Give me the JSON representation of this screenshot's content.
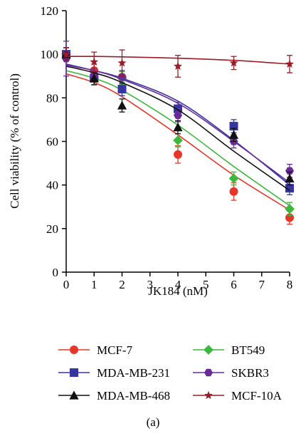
{
  "chart_data": {
    "type": "scatter",
    "xlabel": "JK184 (nM)",
    "ylabel": "Cell viability (% of control)",
    "caption": "(a)",
    "xlim": [
      0,
      8
    ],
    "ylim": [
      0,
      120
    ],
    "xticks": [
      0,
      1,
      2,
      3,
      4,
      5,
      6,
      7,
      8
    ],
    "yticks": [
      0,
      20,
      40,
      60,
      80,
      100,
      120
    ],
    "grid": false,
    "legend_position": "bottom",
    "x": [
      0,
      1,
      2,
      4,
      6,
      8
    ],
    "series": [
      {
        "name": "MCF-7",
        "color": "#e8352a",
        "marker": "circle",
        "values": [
          100,
          92.5,
          89.5,
          54,
          37,
          25
        ],
        "errors": [
          3,
          3,
          3,
          4,
          4,
          3
        ],
        "fit": [
          91,
          87,
          80.5,
          63,
          44.5,
          28.5
        ]
      },
      {
        "name": "BT549",
        "color": "#3cb83c",
        "marker": "diamond",
        "values": [
          100,
          89,
          89,
          60.5,
          43,
          29
        ],
        "errors": [
          3,
          3,
          3,
          3,
          3,
          3
        ],
        "fit": [
          92.5,
          89,
          83.5,
          67.5,
          48.5,
          30.5
        ]
      },
      {
        "name": "MDA-MB-231",
        "color": "#3536a0",
        "marker": "square",
        "values": [
          100,
          89,
          84,
          75,
          67,
          38.5
        ],
        "errors": [
          3,
          3,
          3,
          3,
          3,
          3
        ],
        "fit": [
          95.5,
          92.5,
          89,
          78.5,
          60.5,
          40
        ]
      },
      {
        "name": "SKBR3",
        "color": "#6a2a9a",
        "marker": "hexagon",
        "values": [
          98,
          90.5,
          89.5,
          72,
          60,
          46.5
        ],
        "errors": [
          8,
          3,
          3,
          3,
          3,
          3
        ],
        "fit": [
          95,
          92.5,
          88.5,
          77.5,
          60,
          41
        ]
      },
      {
        "name": "MDA-MB-468",
        "color": "#111111",
        "marker": "triangle",
        "values": [
          100,
          89,
          76.5,
          66.5,
          63,
          43
        ],
        "errors": [
          3,
          3,
          3,
          3,
          3,
          3
        ],
        "fit": [
          94.5,
          91.5,
          87,
          74.5,
          55.5,
          37.5
        ]
      },
      {
        "name": "MCF-10A",
        "color": "#9b1b26",
        "marker": "star",
        "values": [
          100,
          96.5,
          96,
          94.5,
          96,
          95.5
        ],
        "errors": [
          3,
          4.5,
          6,
          5,
          3,
          4
        ],
        "fit": [
          99,
          99,
          98.8,
          98.2,
          97.2,
          95.5
        ]
      }
    ]
  }
}
